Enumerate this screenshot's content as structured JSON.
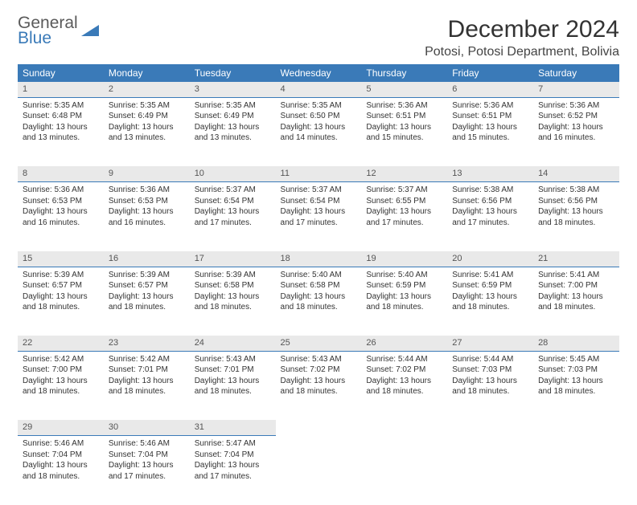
{
  "logo": {
    "word1": "General",
    "word2": "Blue",
    "triangle_color": "#3a7ab8"
  },
  "title": "December 2024",
  "location": "Potosi, Potosi Department, Bolivia",
  "header_bg": "#3a7ab8",
  "daynum_bg": "#e9e9e9",
  "day_headers": [
    "Sunday",
    "Monday",
    "Tuesday",
    "Wednesday",
    "Thursday",
    "Friday",
    "Saturday"
  ],
  "weeks": [
    [
      {
        "n": "1",
        "sr": "Sunrise: 5:35 AM",
        "ss": "Sunset: 6:48 PM",
        "d1": "Daylight: 13 hours",
        "d2": "and 13 minutes."
      },
      {
        "n": "2",
        "sr": "Sunrise: 5:35 AM",
        "ss": "Sunset: 6:49 PM",
        "d1": "Daylight: 13 hours",
        "d2": "and 13 minutes."
      },
      {
        "n": "3",
        "sr": "Sunrise: 5:35 AM",
        "ss": "Sunset: 6:49 PM",
        "d1": "Daylight: 13 hours",
        "d2": "and 13 minutes."
      },
      {
        "n": "4",
        "sr": "Sunrise: 5:35 AM",
        "ss": "Sunset: 6:50 PM",
        "d1": "Daylight: 13 hours",
        "d2": "and 14 minutes."
      },
      {
        "n": "5",
        "sr": "Sunrise: 5:36 AM",
        "ss": "Sunset: 6:51 PM",
        "d1": "Daylight: 13 hours",
        "d2": "and 15 minutes."
      },
      {
        "n": "6",
        "sr": "Sunrise: 5:36 AM",
        "ss": "Sunset: 6:51 PM",
        "d1": "Daylight: 13 hours",
        "d2": "and 15 minutes."
      },
      {
        "n": "7",
        "sr": "Sunrise: 5:36 AM",
        "ss": "Sunset: 6:52 PM",
        "d1": "Daylight: 13 hours",
        "d2": "and 16 minutes."
      }
    ],
    [
      {
        "n": "8",
        "sr": "Sunrise: 5:36 AM",
        "ss": "Sunset: 6:53 PM",
        "d1": "Daylight: 13 hours",
        "d2": "and 16 minutes."
      },
      {
        "n": "9",
        "sr": "Sunrise: 5:36 AM",
        "ss": "Sunset: 6:53 PM",
        "d1": "Daylight: 13 hours",
        "d2": "and 16 minutes."
      },
      {
        "n": "10",
        "sr": "Sunrise: 5:37 AM",
        "ss": "Sunset: 6:54 PM",
        "d1": "Daylight: 13 hours",
        "d2": "and 17 minutes."
      },
      {
        "n": "11",
        "sr": "Sunrise: 5:37 AM",
        "ss": "Sunset: 6:54 PM",
        "d1": "Daylight: 13 hours",
        "d2": "and 17 minutes."
      },
      {
        "n": "12",
        "sr": "Sunrise: 5:37 AM",
        "ss": "Sunset: 6:55 PM",
        "d1": "Daylight: 13 hours",
        "d2": "and 17 minutes."
      },
      {
        "n": "13",
        "sr": "Sunrise: 5:38 AM",
        "ss": "Sunset: 6:56 PM",
        "d1": "Daylight: 13 hours",
        "d2": "and 17 minutes."
      },
      {
        "n": "14",
        "sr": "Sunrise: 5:38 AM",
        "ss": "Sunset: 6:56 PM",
        "d1": "Daylight: 13 hours",
        "d2": "and 18 minutes."
      }
    ],
    [
      {
        "n": "15",
        "sr": "Sunrise: 5:39 AM",
        "ss": "Sunset: 6:57 PM",
        "d1": "Daylight: 13 hours",
        "d2": "and 18 minutes."
      },
      {
        "n": "16",
        "sr": "Sunrise: 5:39 AM",
        "ss": "Sunset: 6:57 PM",
        "d1": "Daylight: 13 hours",
        "d2": "and 18 minutes."
      },
      {
        "n": "17",
        "sr": "Sunrise: 5:39 AM",
        "ss": "Sunset: 6:58 PM",
        "d1": "Daylight: 13 hours",
        "d2": "and 18 minutes."
      },
      {
        "n": "18",
        "sr": "Sunrise: 5:40 AM",
        "ss": "Sunset: 6:58 PM",
        "d1": "Daylight: 13 hours",
        "d2": "and 18 minutes."
      },
      {
        "n": "19",
        "sr": "Sunrise: 5:40 AM",
        "ss": "Sunset: 6:59 PM",
        "d1": "Daylight: 13 hours",
        "d2": "and 18 minutes."
      },
      {
        "n": "20",
        "sr": "Sunrise: 5:41 AM",
        "ss": "Sunset: 6:59 PM",
        "d1": "Daylight: 13 hours",
        "d2": "and 18 minutes."
      },
      {
        "n": "21",
        "sr": "Sunrise: 5:41 AM",
        "ss": "Sunset: 7:00 PM",
        "d1": "Daylight: 13 hours",
        "d2": "and 18 minutes."
      }
    ],
    [
      {
        "n": "22",
        "sr": "Sunrise: 5:42 AM",
        "ss": "Sunset: 7:00 PM",
        "d1": "Daylight: 13 hours",
        "d2": "and 18 minutes."
      },
      {
        "n": "23",
        "sr": "Sunrise: 5:42 AM",
        "ss": "Sunset: 7:01 PM",
        "d1": "Daylight: 13 hours",
        "d2": "and 18 minutes."
      },
      {
        "n": "24",
        "sr": "Sunrise: 5:43 AM",
        "ss": "Sunset: 7:01 PM",
        "d1": "Daylight: 13 hours",
        "d2": "and 18 minutes."
      },
      {
        "n": "25",
        "sr": "Sunrise: 5:43 AM",
        "ss": "Sunset: 7:02 PM",
        "d1": "Daylight: 13 hours",
        "d2": "and 18 minutes."
      },
      {
        "n": "26",
        "sr": "Sunrise: 5:44 AM",
        "ss": "Sunset: 7:02 PM",
        "d1": "Daylight: 13 hours",
        "d2": "and 18 minutes."
      },
      {
        "n": "27",
        "sr": "Sunrise: 5:44 AM",
        "ss": "Sunset: 7:03 PM",
        "d1": "Daylight: 13 hours",
        "d2": "and 18 minutes."
      },
      {
        "n": "28",
        "sr": "Sunrise: 5:45 AM",
        "ss": "Sunset: 7:03 PM",
        "d1": "Daylight: 13 hours",
        "d2": "and 18 minutes."
      }
    ],
    [
      {
        "n": "29",
        "sr": "Sunrise: 5:46 AM",
        "ss": "Sunset: 7:04 PM",
        "d1": "Daylight: 13 hours",
        "d2": "and 18 minutes."
      },
      {
        "n": "30",
        "sr": "Sunrise: 5:46 AM",
        "ss": "Sunset: 7:04 PM",
        "d1": "Daylight: 13 hours",
        "d2": "and 17 minutes."
      },
      {
        "n": "31",
        "sr": "Sunrise: 5:47 AM",
        "ss": "Sunset: 7:04 PM",
        "d1": "Daylight: 13 hours",
        "d2": "and 17 minutes."
      },
      null,
      null,
      null,
      null
    ]
  ]
}
